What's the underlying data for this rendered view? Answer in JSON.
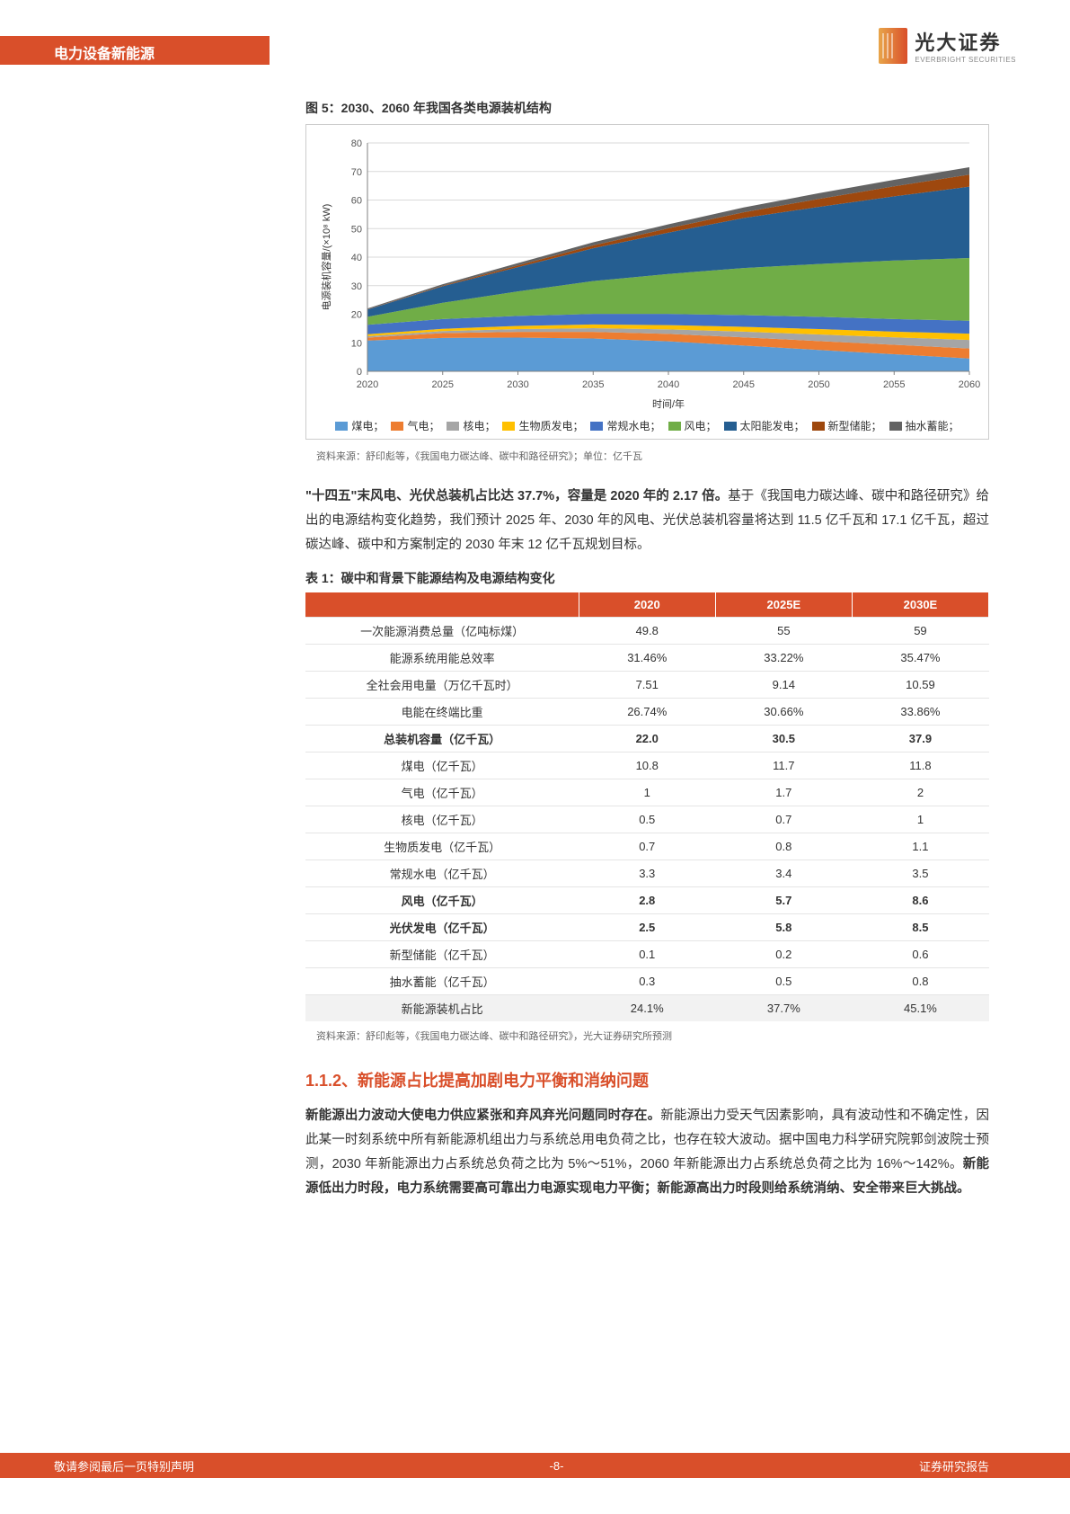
{
  "header": {
    "category": "电力设备新能源",
    "logo_cn": "光大证券",
    "logo_en": "EVERBRIGHT SECURITIES"
  },
  "figure": {
    "title": "图 5：2030、2060 年我国各类电源装机结构",
    "source": "资料来源：舒印彪等，《我国电力碳达峰、碳中和路径研究》；单位：亿千瓦",
    "type": "stacked-area",
    "x_label": "时间/年",
    "y_label": "电源装机容量/(×10⁸ kW)",
    "x_ticks": [
      "2020",
      "2025",
      "2030",
      "2035",
      "2040",
      "2045",
      "2050",
      "2055",
      "2060"
    ],
    "y_ticks": [
      0,
      10,
      20,
      30,
      40,
      50,
      60,
      70,
      80
    ],
    "ylim": [
      0,
      80
    ],
    "grid_color": "#d9d9d9",
    "axis_color": "#808080",
    "label_fontsize": 11,
    "tick_fontsize": 11,
    "series": [
      {
        "name": "煤电",
        "color": "#5b9bd5",
        "values": [
          10.8,
          11.7,
          11.8,
          11.5,
          10.5,
          9.0,
          7.5,
          6.0,
          4.5
        ]
      },
      {
        "name": "气电",
        "color": "#ed7d31",
        "values": [
          1.0,
          1.7,
          2.0,
          2.3,
          2.6,
          2.9,
          3.1,
          3.3,
          3.5
        ]
      },
      {
        "name": "核电",
        "color": "#a5a5a5",
        "values": [
          0.5,
          0.7,
          1.0,
          1.3,
          1.6,
          2.0,
          2.3,
          2.6,
          3.0
        ]
      },
      {
        "name": "生物质发电",
        "color": "#ffc000",
        "values": [
          0.7,
          0.8,
          1.1,
          1.3,
          1.5,
          1.7,
          1.9,
          2.0,
          2.2
        ]
      },
      {
        "name": "常规水电",
        "color": "#4472c4",
        "values": [
          3.3,
          3.4,
          3.5,
          3.7,
          3.9,
          4.1,
          4.3,
          4.4,
          4.5
        ]
      },
      {
        "name": "风电",
        "color": "#70ad47",
        "values": [
          2.8,
          5.7,
          8.6,
          11.5,
          14.0,
          16.5,
          18.5,
          20.5,
          22.0
        ]
      },
      {
        "name": "太阳能发电",
        "color": "#255e91",
        "values": [
          2.5,
          5.8,
          8.5,
          11.5,
          14.5,
          17.5,
          20.0,
          22.5,
          25.0
        ]
      },
      {
        "name": "新型储能",
        "color": "#9e480e",
        "values": [
          0.1,
          0.2,
          0.6,
          1.0,
          1.5,
          2.0,
          2.8,
          3.5,
          4.2
        ]
      },
      {
        "name": "抽水蓄能",
        "color": "#636363",
        "values": [
          0.3,
          0.5,
          0.8,
          1.1,
          1.4,
          1.7,
          2.0,
          2.3,
          2.6
        ]
      }
    ]
  },
  "para1": {
    "bold": "\"十四五\"末风电、光伏总装机占比达 37.7%，容量是 2020 年的 2.17 倍。",
    "rest": "基于《我国电力碳达峰、碳中和路径研究》给出的电源结构变化趋势，我们预计 2025 年、2030 年的风电、光伏总装机容量将达到 11.5 亿千瓦和 17.1 亿千瓦，超过碳达峰、碳中和方案制定的 2030 年末 12 亿千瓦规划目标。"
  },
  "table": {
    "title": "表 1：碳中和背景下能源结构及电源结构变化",
    "source": "资料来源：舒印彪等，《我国电力碳达峰、碳中和路径研究》，光大证券研究所预测",
    "header_bg": "#d94f2a",
    "header_color": "#ffffff",
    "row_border": "#e5e5e5",
    "shade_bg": "#f2f2f2",
    "columns": [
      "",
      "2020",
      "2025E",
      "2030E"
    ],
    "rows": [
      {
        "label": "一次能源消费总量（亿吨标煤）",
        "v": [
          "49.8",
          "55",
          "59"
        ],
        "bold": false,
        "shade": false
      },
      {
        "label": "能源系统用能总效率",
        "v": [
          "31.46%",
          "33.22%",
          "35.47%"
        ],
        "bold": false,
        "shade": false
      },
      {
        "label": "全社会用电量（万亿千瓦时）",
        "v": [
          "7.51",
          "9.14",
          "10.59"
        ],
        "bold": false,
        "shade": false
      },
      {
        "label": "电能在终端比重",
        "v": [
          "26.74%",
          "30.66%",
          "33.86%"
        ],
        "bold": false,
        "shade": false
      },
      {
        "label": "总装机容量（亿千瓦）",
        "v": [
          "22.0",
          "30.5",
          "37.9"
        ],
        "bold": true,
        "shade": false
      },
      {
        "label": "煤电（亿千瓦）",
        "v": [
          "10.8",
          "11.7",
          "11.8"
        ],
        "bold": false,
        "shade": false
      },
      {
        "label": "气电（亿千瓦）",
        "v": [
          "1",
          "1.7",
          "2"
        ],
        "bold": false,
        "shade": false
      },
      {
        "label": "核电（亿千瓦）",
        "v": [
          "0.5",
          "0.7",
          "1"
        ],
        "bold": false,
        "shade": false
      },
      {
        "label": "生物质发电（亿千瓦）",
        "v": [
          "0.7",
          "0.8",
          "1.1"
        ],
        "bold": false,
        "shade": false
      },
      {
        "label": "常规水电（亿千瓦）",
        "v": [
          "3.3",
          "3.4",
          "3.5"
        ],
        "bold": false,
        "shade": false
      },
      {
        "label": "风电（亿千瓦）",
        "v": [
          "2.8",
          "5.7",
          "8.6"
        ],
        "bold": true,
        "shade": false
      },
      {
        "label": "光伏发电（亿千瓦）",
        "v": [
          "2.5",
          "5.8",
          "8.5"
        ],
        "bold": true,
        "shade": false
      },
      {
        "label": "新型储能（亿千瓦）",
        "v": [
          "0.1",
          "0.2",
          "0.6"
        ],
        "bold": false,
        "shade": false
      },
      {
        "label": "抽水蓄能（亿千瓦）",
        "v": [
          "0.3",
          "0.5",
          "0.8"
        ],
        "bold": false,
        "shade": false
      },
      {
        "label": "新能源装机占比",
        "v": [
          "24.1%",
          "37.7%",
          "45.1%"
        ],
        "bold": false,
        "shade": true
      }
    ]
  },
  "section": {
    "title": "1.1.2、新能源占比提高加剧电力平衡和消纳问题"
  },
  "para2": {
    "bold1": "新能源出力波动大使电力供应紧张和弃风弃光问题同时存在。",
    "mid": "新能源出力受天气因素影响，具有波动性和不确定性，因此某一时刻系统中所有新能源机组出力与系统总用电负荷之比，也存在较大波动。据中国电力科学研究院郭剑波院士预测，2030 年新能源出力占系统总负荷之比为 5%～51%，2060 年新能源出力占系统总负荷之比为 16%～142%。",
    "bold2": "新能源低出力时段，电力系统需要高可靠出力电源实现电力平衡；新能源高出力时段则给系统消纳、安全带来巨大挑战。"
  },
  "footer": {
    "left": "敬请参阅最后一页特别声明",
    "center": "-8-",
    "right": "证券研究报告"
  }
}
